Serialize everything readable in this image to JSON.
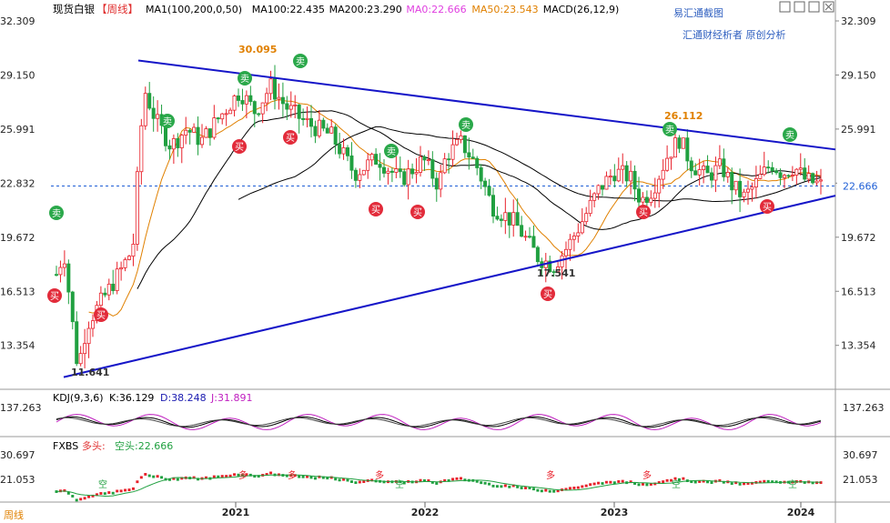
{
  "header": {
    "title": "现货白银",
    "period": "【周线】",
    "ma_items": [
      {
        "label": "MA1(100,200,0,50)",
        "color": "#000000"
      },
      {
        "label": "MA100:22.435",
        "color": "#000000"
      },
      {
        "label": "MA200:23.290",
        "color": "#000000"
      },
      {
        "label": "MA0:22.666",
        "color": "#e040e0"
      },
      {
        "label": "MA50:23.543",
        "color": "#e08000"
      },
      {
        "label": "MACD(26,12,9)",
        "color": "#000000"
      }
    ],
    "watermark": "易汇通截图",
    "source": "汇通财经析者  原创分析"
  },
  "colors": {
    "up": "#e8202a",
    "down": "#20a040",
    "trendline": "#1515c8",
    "ma50": "#e08000",
    "ma100": "#000000",
    "ma200": "#000000",
    "price_line": "#1f5fd6",
    "kdj_k": "#000000",
    "kdj_d": "#000000",
    "kdj_j": "#c020c0",
    "sell_badge": "#2aa84a",
    "buy_badge": "#e22b3a"
  },
  "chart_data": [
    {
      "type": "candlestick",
      "title": "现货白银【周线】",
      "y_ticks": [
        13.354,
        16.513,
        19.672,
        22.832,
        25.991,
        29.15,
        32.309
      ],
      "ylim": [
        11.0,
        33.0
      ],
      "x_ticks": [
        "2021",
        "2022",
        "2023",
        "2024"
      ],
      "current_price": 22.666,
      "annotations": [
        {
          "text": "30.095",
          "color": "#e08000"
        },
        {
          "text": "26.112",
          "color": "#e08000"
        },
        {
          "text": "17.541",
          "color": "#333333"
        },
        {
          "text": "11.641",
          "color": "#333333"
        }
      ],
      "sell_label": "卖",
      "buy_label": "买",
      "sell_count": 8,
      "buy_count": 9,
      "series": [
        {
          "name": "MA50",
          "value": 23.543
        },
        {
          "name": "MA100",
          "value": 22.435
        },
        {
          "name": "MA200",
          "value": 23.29
        }
      ],
      "trendlines": [
        {
          "name": "upper",
          "from": 30.0,
          "to": 24.8
        },
        {
          "name": "lower",
          "from": 11.5,
          "to": 22.1
        }
      ]
    },
    {
      "type": "line",
      "title": "KDJ(9,3,6)",
      "y_ticks": [
        137.263
      ],
      "series": [
        {
          "name": "K",
          "value": 36.129,
          "label": "K:36.129"
        },
        {
          "name": "D",
          "value": 38.248,
          "label": "D:38.248"
        },
        {
          "name": "J",
          "value": 31.891,
          "label": "J:31.891"
        }
      ]
    },
    {
      "type": "bar",
      "title": "FXBS",
      "bull_label": "多头:",
      "bear_label": "空头:22.666",
      "y_ticks": [
        30.697,
        21.053
      ],
      "markers": {
        "bull": "多",
        "bear": "空"
      }
    }
  ],
  "footer": {
    "period_label": "周线"
  }
}
